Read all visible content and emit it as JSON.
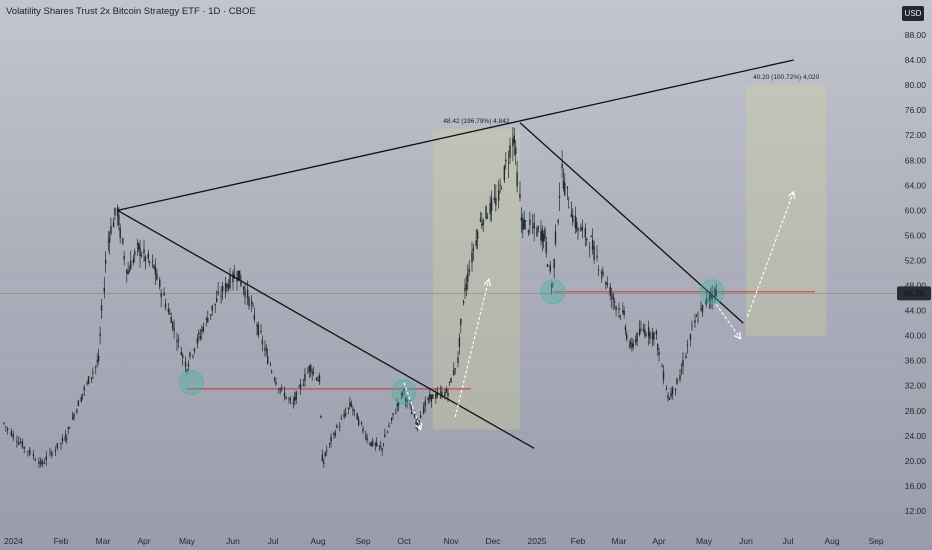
{
  "header": {
    "title": "Volatility Shares Trust 2x Bitcoin Strategy ETF · 1D · CBOE",
    "currency": "USD"
  },
  "colors": {
    "candle": "#1f2a2c",
    "trendline": "#111111",
    "support": "#c23b3b",
    "last_price_line": "#8a5a5a",
    "measure_box": "#d6d59a",
    "circle": "#3fb3a3",
    "arrow": "#ffffff",
    "price_tag_bg": "#2a2d35"
  },
  "chart_data": {
    "type": "candlestick",
    "x_ticks": [
      "2024",
      "Feb",
      "Mar",
      "Apr",
      "May",
      "Jun",
      "Jul",
      "Aug",
      "Sep",
      "Oct",
      "Nov",
      "Dec",
      "2025",
      "Feb",
      "Mar",
      "Apr",
      "May",
      "Jun",
      "Jul",
      "Aug",
      "Sep"
    ],
    "y_ticks": [
      12,
      16,
      20,
      24,
      28,
      32,
      36,
      40,
      44,
      48,
      52,
      56,
      60,
      64,
      68,
      72,
      76,
      80,
      84,
      88
    ],
    "y_tick_labels": [
      "12.00",
      "16.00",
      "20.00",
      "24.00",
      "28.00",
      "32.00",
      "36.00",
      "40.00",
      "44.00",
      "48.00",
      "52.00",
      "56.00",
      "60.00",
      "64.00",
      "68.00",
      "72.00",
      "76.00",
      "80.00",
      "84.00",
      "88.00"
    ],
    "ylim": [
      9,
      91
    ],
    "xlim": [
      "2024-01-01",
      "2025-09-30"
    ],
    "last_price": 46.75,
    "last_price_label": "46.75",
    "price_path": [
      [
        "2024-01-01",
        26
      ],
      [
        "2024-01-10",
        23
      ],
      [
        "2024-01-22",
        19.5
      ],
      [
        "2024-02-05",
        24
      ],
      [
        "2024-02-15",
        30
      ],
      [
        "2024-02-27",
        36
      ],
      [
        "2024-03-05",
        55
      ],
      [
        "2024-03-12",
        60
      ],
      [
        "2024-03-20",
        50
      ],
      [
        "2024-03-28",
        54
      ],
      [
        "2024-04-08",
        51
      ],
      [
        "2024-04-20",
        43
      ],
      [
        "2024-05-01",
        35
      ],
      [
        "2024-05-10",
        40
      ],
      [
        "2024-05-20",
        45
      ],
      [
        "2024-05-28",
        48
      ],
      [
        "2024-06-05",
        50
      ],
      [
        "2024-06-15",
        45
      ],
      [
        "2024-06-25",
        38
      ],
      [
        "2024-07-05",
        32
      ],
      [
        "2024-07-15",
        29
      ],
      [
        "2024-07-27",
        35
      ],
      [
        "2024-08-02",
        33
      ],
      [
        "2024-08-05",
        20
      ],
      [
        "2024-08-12",
        24
      ],
      [
        "2024-08-24",
        29
      ],
      [
        "2024-09-06",
        23
      ],
      [
        "2024-09-15",
        22
      ],
      [
        "2024-09-25",
        28
      ],
      [
        "2024-10-01",
        31
      ],
      [
        "2024-10-10",
        26
      ],
      [
        "2024-10-18",
        30
      ],
      [
        "2024-10-30",
        31
      ],
      [
        "2024-11-06",
        36
      ],
      [
        "2024-11-12",
        48
      ],
      [
        "2024-11-22",
        58
      ],
      [
        "2024-12-05",
        62
      ],
      [
        "2024-12-16",
        72
      ],
      [
        "2024-12-22",
        58
      ],
      [
        "2025-01-07",
        56
      ],
      [
        "2025-01-13",
        48
      ],
      [
        "2025-01-20",
        66
      ],
      [
        "2025-01-30",
        58
      ],
      [
        "2025-02-10",
        55
      ],
      [
        "2025-02-25",
        46
      ],
      [
        "2025-03-05",
        43
      ],
      [
        "2025-03-10",
        38
      ],
      [
        "2025-03-20",
        41
      ],
      [
        "2025-03-30",
        40
      ],
      [
        "2025-04-08",
        30
      ],
      [
        "2025-04-15",
        33
      ],
      [
        "2025-04-25",
        42
      ],
      [
        "2025-05-05",
        46
      ],
      [
        "2025-05-12",
        47.5
      ]
    ],
    "trendlines": [
      {
        "from": [
          "2024-03-12",
          60
        ],
        "to": [
          "2025-07-05",
          84
        ]
      },
      {
        "from": [
          "2024-03-12",
          60
        ],
        "to": [
          "2024-12-30",
          22
        ]
      },
      {
        "from": [
          "2024-12-20",
          74
        ],
        "to": [
          "2025-05-30",
          42
        ]
      }
    ],
    "support_levels": [
      {
        "from": [
          "2024-05-01",
          31.5
        ],
        "to": [
          "2024-11-15",
          31.5
        ]
      },
      {
        "from": [
          "2025-01-13",
          47
        ],
        "to": [
          "2025-07-20",
          47
        ]
      }
    ],
    "highlight_circles": [
      [
        "2024-05-04",
        32.5
      ],
      [
        "2024-10-01",
        31
      ],
      [
        "2025-01-13",
        47
      ],
      [
        "2025-05-07",
        47
      ]
    ],
    "arrows": [
      {
        "from": [
          "2024-10-01",
          32.5
        ],
        "to": [
          "2024-10-12",
          25
        ]
      },
      {
        "from": [
          "2024-11-04",
          27
        ],
        "to": [
          "2024-11-28",
          49
        ]
      },
      {
        "from": [
          "2025-05-10",
          45
        ],
        "to": [
          "2025-05-28",
          39.5
        ]
      },
      {
        "from": [
          "2025-06-02",
          43
        ],
        "to": [
          "2025-07-05",
          63
        ]
      }
    ],
    "measure_boxes": [
      {
        "x0": "2024-10-20",
        "x1": "2024-12-20",
        "y0": 25,
        "y1": 73,
        "label": "48.42 (196.79%) 4,842"
      },
      {
        "x0": "2025-06-01",
        "x1": "2025-07-28",
        "y0": 40,
        "y1": 80,
        "label": "40.20 (100.72%) 4,020"
      }
    ]
  }
}
